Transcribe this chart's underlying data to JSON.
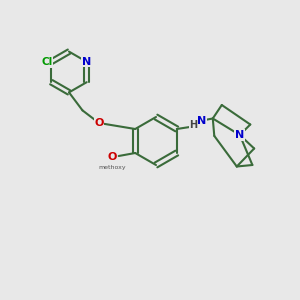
{
  "bg": "#e8e8e8",
  "bond_color": "#3a6b3a",
  "bond_lw": 1.5,
  "colors": {
    "N": "#0000cc",
    "O": "#cc0000",
    "Cl": "#009900",
    "H": "#444444"
  },
  "figsize": [
    3.0,
    3.0
  ],
  "dpi": 100,
  "xlim": [
    0,
    10
  ],
  "ylim": [
    0,
    10
  ]
}
